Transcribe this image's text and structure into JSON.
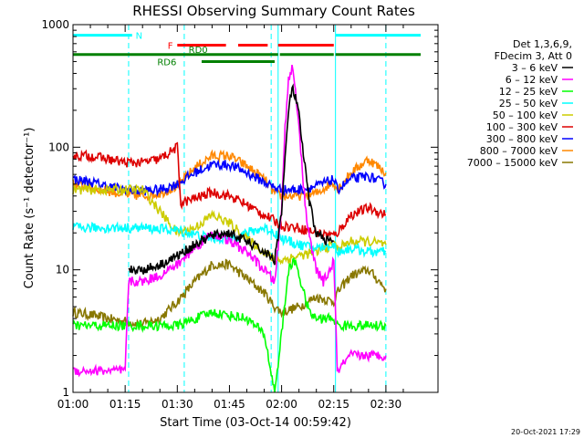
{
  "chart_data": {
    "type": "line",
    "title": "RHESSI Observing Summary Count Rates",
    "xlabel": "Start Time (03-Oct-14 00:59:42)",
    "ylabel": "Count Rate (s⁻¹ detector⁻¹)",
    "yscale": "log",
    "ylim": [
      1,
      1000
    ],
    "xlim_minutes": [
      0,
      100
    ],
    "x_ticks": [
      {
        "m": 0,
        "label": "01:00"
      },
      {
        "m": 15,
        "label": "01:15"
      },
      {
        "m": 30,
        "label": "01:30"
      },
      {
        "m": 45,
        "label": "01:45"
      },
      {
        "m": 60,
        "label": "02:00"
      },
      {
        "m": 75,
        "label": "02:15"
      },
      {
        "m": 90,
        "label": "02:30"
      }
    ],
    "y_ticks": [
      {
        "v": 1,
        "label": "1"
      },
      {
        "v": 10,
        "label": "10"
      },
      {
        "v": 100,
        "label": "100"
      },
      {
        "v": 1000,
        "label": "1000"
      }
    ],
    "legend": {
      "position": "right",
      "header": [
        "Det 1,3,6,9,",
        "FDecim 3, Att 0"
      ],
      "entries": [
        {
          "label": "3 – 6 keV",
          "color": "#000000"
        },
        {
          "label": "6 – 12 keV",
          "color": "#ff00ff"
        },
        {
          "label": "12 – 25 keV",
          "color": "#00ff00"
        },
        {
          "label": "25 – 50 keV",
          "color": "#00ffff"
        },
        {
          "label": "50 – 100 keV",
          "color": "#cccc00"
        },
        {
          "label": "100 – 300 keV",
          "color": "#dd0000"
        },
        {
          "label": "300 – 800 keV",
          "color": "#0000ff"
        },
        {
          "label": "800 – 7000 keV",
          "color": "#ff8800"
        },
        {
          "label": "7000 – 15000 keV",
          "color": "#887700"
        }
      ]
    },
    "series": [
      {
        "name": "3 – 6 keV",
        "color": "#000000",
        "x": [
          16,
          20,
          25,
          30,
          35,
          40,
          45,
          50,
          55,
          58,
          60,
          61,
          62,
          63,
          64,
          65,
          66,
          67,
          68,
          70,
          72,
          74,
          75
        ],
        "y": [
          10,
          10,
          11,
          13,
          16,
          19,
          20,
          17,
          14,
          12,
          30,
          80,
          200,
          300,
          260,
          180,
          100,
          60,
          35,
          20,
          18,
          17,
          17
        ]
      },
      {
        "name": "6 – 12 keV",
        "color": "#ff00ff",
        "x": [
          0,
          5,
          10,
          15,
          16,
          20,
          25,
          30,
          35,
          40,
          45,
          50,
          55,
          58,
          60,
          61,
          62,
          63,
          64,
          65,
          66,
          67,
          68,
          70,
          72,
          74,
          75,
          76,
          80,
          85,
          90
        ],
        "y": [
          1.5,
          1.5,
          1.5,
          1.5,
          8,
          8,
          9,
          11,
          15,
          20,
          17,
          14,
          10,
          8,
          30,
          150,
          350,
          450,
          300,
          150,
          60,
          30,
          18,
          10,
          8,
          10,
          12,
          1.5,
          2,
          2,
          2
        ]
      },
      {
        "name": "12 – 25 keV",
        "color": "#00ff00",
        "x": [
          0,
          10,
          20,
          30,
          40,
          50,
          55,
          58,
          60,
          62,
          64,
          66,
          68,
          70,
          74,
          75,
          76,
          80,
          90
        ],
        "y": [
          3.5,
          3.5,
          3.5,
          3.5,
          4.5,
          4,
          3,
          1,
          3,
          10,
          12,
          7,
          4.5,
          4,
          4,
          4,
          3.5,
          3.5,
          3.5
        ]
      },
      {
        "name": "25 – 50 keV",
        "color": "#00ffff",
        "x": [
          0,
          10,
          20,
          30,
          40,
          45,
          50,
          55,
          58,
          60,
          65,
          70,
          75,
          76,
          80,
          85,
          90
        ],
        "y": [
          22,
          22,
          22,
          21,
          18,
          18,
          20,
          22,
          20,
          18,
          16,
          15,
          16,
          14,
          15,
          14,
          14
        ]
      },
      {
        "name": "50 – 100 keV",
        "color": "#cccc00",
        "x": [
          0,
          10,
          20,
          30,
          35,
          40,
          45,
          50,
          55,
          58,
          60,
          65,
          70,
          75,
          76,
          80,
          85,
          90
        ],
        "y": [
          45,
          45,
          45,
          20,
          22,
          28,
          24,
          18,
          14,
          12,
          12,
          13,
          14,
          16,
          15,
          17,
          17,
          16
        ]
      },
      {
        "name": "100 – 300 keV",
        "color": "#dd0000",
        "x": [
          0,
          5,
          10,
          15,
          20,
          25,
          30,
          31,
          35,
          40,
          45,
          50,
          55,
          58,
          60,
          65,
          70,
          75,
          76,
          80,
          85,
          90
        ],
        "y": [
          85,
          85,
          80,
          75,
          75,
          80,
          100,
          35,
          38,
          43,
          40,
          34,
          28,
          25,
          23,
          22,
          20,
          19,
          20,
          28,
          32,
          28
        ]
      },
      {
        "name": "300 – 800 keV",
        "color": "#0000ff",
        "x": [
          0,
          5,
          10,
          15,
          20,
          25,
          30,
          35,
          40,
          45,
          50,
          55,
          58,
          60,
          65,
          70,
          75,
          76,
          80,
          85,
          90
        ],
        "y": [
          55,
          52,
          48,
          45,
          44,
          45,
          50,
          62,
          72,
          72,
          62,
          52,
          47,
          45,
          45,
          48,
          55,
          45,
          55,
          58,
          50
        ]
      },
      {
        "name": "800 – 7000 keV",
        "color": "#ff8800",
        "x": [
          0,
          5,
          10,
          15,
          20,
          25,
          30,
          35,
          40,
          45,
          50,
          55,
          58,
          60,
          65,
          70,
          75,
          76,
          80,
          85,
          90
        ],
        "y": [
          50,
          47,
          44,
          41,
          40,
          42,
          48,
          68,
          85,
          85,
          70,
          55,
          42,
          40,
          40,
          42,
          52,
          45,
          62,
          80,
          62
        ]
      },
      {
        "name": "7000 – 15000 keV",
        "color": "#887700",
        "x": [
          0,
          5,
          10,
          15,
          20,
          25,
          30,
          35,
          40,
          45,
          50,
          55,
          58,
          60,
          65,
          70,
          75,
          76,
          80,
          85,
          90
        ],
        "y": [
          4.5,
          4.3,
          4,
          3.8,
          3.6,
          4,
          5.5,
          8,
          11,
          11,
          8.5,
          6.5,
          5,
          4.5,
          5,
          6,
          5.5,
          6.5,
          9,
          10,
          7
        ]
      }
    ],
    "flag_bars": [
      {
        "name": "N",
        "color": "#00ffff",
        "segments": [
          [
            0,
            17
          ],
          [
            75.5,
            100
          ]
        ],
        "level": 820
      },
      {
        "name": "F",
        "color": "#ff0000",
        "segments": [
          [
            30,
            44
          ],
          [
            47.5,
            56
          ],
          [
            59,
            75
          ]
        ],
        "level": 680
      },
      {
        "name": "RD0",
        "color": "#008000",
        "segments": [
          [
            0,
            59
          ],
          [
            59.5,
            75
          ],
          [
            75.5,
            100
          ]
        ],
        "level": 570
      },
      {
        "name": "RD6",
        "color": "#008000",
        "segments": [
          [
            37,
            58
          ]
        ],
        "level": 500
      }
    ],
    "vertical_lines": [
      {
        "m": 16,
        "color": "#00ffff",
        "style": "dashed"
      },
      {
        "m": 32,
        "color": "#00ffff",
        "style": "dashed"
      },
      {
        "m": 57,
        "color": "#00ffff",
        "style": "dashed"
      },
      {
        "m": 59,
        "color": "#00ffff",
        "style": "solid"
      },
      {
        "m": 75.5,
        "color": "#00ffff",
        "style": "solid"
      },
      {
        "m": 90,
        "color": "#00ffff",
        "style": "dashed"
      }
    ],
    "grid": false
  },
  "footer_timestamp": "20-Oct-2021 17:29"
}
